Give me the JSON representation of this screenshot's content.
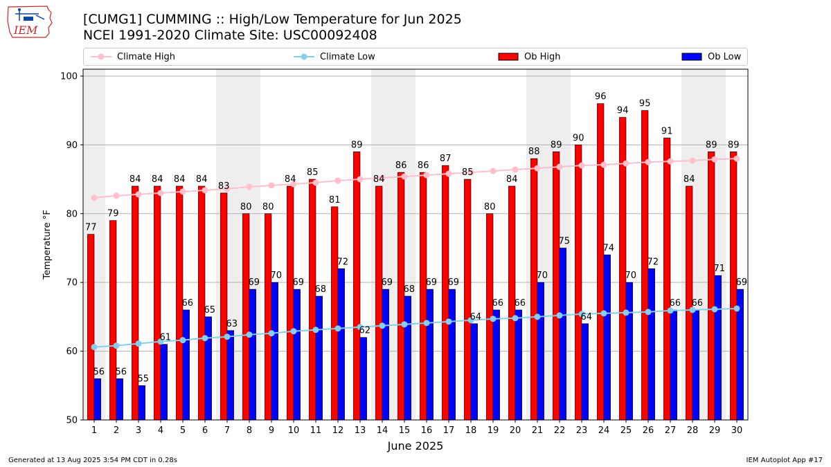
{
  "header": {
    "title": "[CUMG1] CUMMING :: High/Low Temperature for Jun 2025",
    "subtitle": "NCEI 1991-2020 Climate Site: USC00092408",
    "logo_text": "IEM"
  },
  "legend": {
    "climate_high": "Climate High",
    "climate_low": "Climate Low",
    "ob_high": "Ob High",
    "ob_low": "Ob Low"
  },
  "footer": {
    "generated": "Generated at 13 Aug 2025 3:54 PM CDT in 0.28s",
    "app": "IEM Autoplot App #17"
  },
  "colors": {
    "ob_high": "#ff0000",
    "ob_low": "#0000ff",
    "climate_high": "#ffc0cb",
    "climate_low": "#87ceeb",
    "weekend_band": "#eeeeee"
  },
  "chart_data": {
    "type": "bar",
    "xlabel": "June 2025",
    "ylabel": "Temperature °F",
    "ylim": [
      50,
      101
    ],
    "yticks": [
      50,
      60,
      70,
      80,
      90,
      100
    ],
    "grid": "horizontal",
    "legend_position": "top",
    "categories": [
      "1",
      "2",
      "3",
      "4",
      "5",
      "6",
      "7",
      "8",
      "9",
      "10",
      "11",
      "12",
      "13",
      "14",
      "15",
      "16",
      "17",
      "18",
      "19",
      "20",
      "21",
      "22",
      "23",
      "24",
      "25",
      "26",
      "27",
      "28",
      "29",
      "30"
    ],
    "shaded_days": [
      1,
      7,
      8,
      14,
      15,
      21,
      22,
      28,
      29
    ],
    "series": [
      {
        "name": "Ob High",
        "kind": "bar",
        "values": [
          77,
          79,
          84,
          84,
          84,
          84,
          83,
          80,
          80,
          84,
          85,
          81,
          89,
          84,
          86,
          86,
          87,
          85,
          80,
          84,
          88,
          89,
          90,
          96,
          94,
          95,
          91,
          84,
          89,
          89
        ]
      },
      {
        "name": "Ob Low",
        "kind": "bar",
        "values": [
          56,
          56,
          55,
          61,
          66,
          65,
          63,
          69,
          70,
          69,
          68,
          72,
          62,
          69,
          68,
          69,
          69,
          64,
          66,
          66,
          70,
          75,
          64,
          74,
          70,
          72,
          66,
          66,
          71,
          69
        ]
      },
      {
        "name": "Climate High",
        "kind": "line",
        "values": [
          82.3,
          82.6,
          82.8,
          83.0,
          83.2,
          83.4,
          83.6,
          83.9,
          84.1,
          84.3,
          84.5,
          84.8,
          85.0,
          85.2,
          85.4,
          85.6,
          85.8,
          86.0,
          86.2,
          86.4,
          86.6,
          86.8,
          87.0,
          87.1,
          87.3,
          87.5,
          87.6,
          87.7,
          87.9,
          88.0
        ]
      },
      {
        "name": "Climate Low",
        "kind": "line",
        "values": [
          60.6,
          60.8,
          61.1,
          61.4,
          61.6,
          61.9,
          62.1,
          62.4,
          62.6,
          62.9,
          63.1,
          63.3,
          63.5,
          63.7,
          63.9,
          64.1,
          64.3,
          64.5,
          64.7,
          64.8,
          65.0,
          65.2,
          65.4,
          65.5,
          65.6,
          65.7,
          65.9,
          66.0,
          66.1,
          66.2
        ]
      }
    ]
  }
}
